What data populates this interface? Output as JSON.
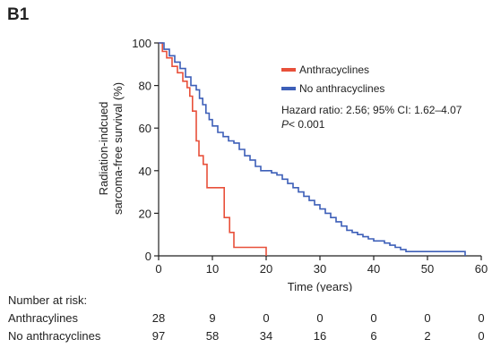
{
  "panel_label": "B1",
  "colors": {
    "anthracyclines": "#e8503a",
    "no_anthracyclines": "#3d5fb8",
    "axis": "#222222"
  },
  "chart_data": {
    "type": "line",
    "subtype": "kaplan-meier step curve",
    "xlabel": "Time (years)",
    "ylabel_line1": "Radiation-indcued",
    "ylabel_line2": "sarcoma-free survival (%)",
    "xlim": [
      0,
      60
    ],
    "ylim": [
      0,
      100
    ],
    "xticks": [
      0,
      10,
      20,
      30,
      40,
      50,
      60
    ],
    "yticks": [
      0,
      20,
      40,
      60,
      80,
      100
    ],
    "legend_position": "top-right",
    "grid": false,
    "series": [
      {
        "name": "Anthracyclines",
        "color": "#e8503a",
        "points": [
          [
            0,
            100
          ],
          [
            0.7,
            96
          ],
          [
            1.5,
            93
          ],
          [
            2.5,
            89
          ],
          [
            3.5,
            86
          ],
          [
            4.5,
            82
          ],
          [
            5.3,
            79
          ],
          [
            5.8,
            75
          ],
          [
            6.3,
            68
          ],
          [
            7,
            54
          ],
          [
            7.5,
            47
          ],
          [
            8.3,
            43
          ],
          [
            9,
            32
          ],
          [
            11.8,
            32
          ],
          [
            12.2,
            18
          ],
          [
            13.2,
            11
          ],
          [
            14,
            4
          ],
          [
            20,
            4
          ],
          [
            20,
            0
          ]
        ]
      },
      {
        "name": "No anthracyclines",
        "color": "#3d5fb8",
        "points": [
          [
            0,
            100
          ],
          [
            1,
            97
          ],
          [
            2,
            94
          ],
          [
            3,
            91
          ],
          [
            4,
            88
          ],
          [
            5,
            84
          ],
          [
            6,
            80
          ],
          [
            7,
            78
          ],
          [
            7.6,
            74
          ],
          [
            8.2,
            71
          ],
          [
            8.8,
            67
          ],
          [
            9.4,
            64
          ],
          [
            10,
            61
          ],
          [
            11,
            58
          ],
          [
            12,
            56
          ],
          [
            13,
            54
          ],
          [
            14,
            53
          ],
          [
            15,
            50
          ],
          [
            16,
            47
          ],
          [
            17,
            45
          ],
          [
            18,
            42
          ],
          [
            19,
            40
          ],
          [
            21,
            39
          ],
          [
            22,
            38
          ],
          [
            23,
            36
          ],
          [
            24,
            34
          ],
          [
            25,
            32
          ],
          [
            26,
            30
          ],
          [
            27,
            28
          ],
          [
            28,
            26
          ],
          [
            29,
            24
          ],
          [
            30,
            22
          ],
          [
            31,
            20
          ],
          [
            32,
            18
          ],
          [
            33,
            16
          ],
          [
            34,
            14
          ],
          [
            35,
            12
          ],
          [
            36,
            11
          ],
          [
            37,
            10
          ],
          [
            38,
            9
          ],
          [
            39,
            8
          ],
          [
            40,
            7
          ],
          [
            42,
            6
          ],
          [
            43,
            5
          ],
          [
            44,
            4
          ],
          [
            45,
            3
          ],
          [
            46,
            2
          ],
          [
            56.5,
            2
          ],
          [
            57,
            0
          ]
        ]
      }
    ],
    "annotation_line1": "Hazard ratio: 2.56; 95% CI: 1.62–4.07",
    "annotation_line2_italic": "P",
    "annotation_line2_rest": "< 0.001"
  },
  "risk_table": {
    "title": "Number at risk:",
    "times": [
      0,
      10,
      20,
      30,
      40,
      50,
      60
    ],
    "rows": [
      {
        "label": "Anthracylines",
        "values": [
          28,
          9,
          0,
          0,
          0,
          0,
          0
        ]
      },
      {
        "label": "No anthracyclines",
        "values": [
          97,
          58,
          34,
          16,
          6,
          2,
          0
        ]
      }
    ]
  }
}
